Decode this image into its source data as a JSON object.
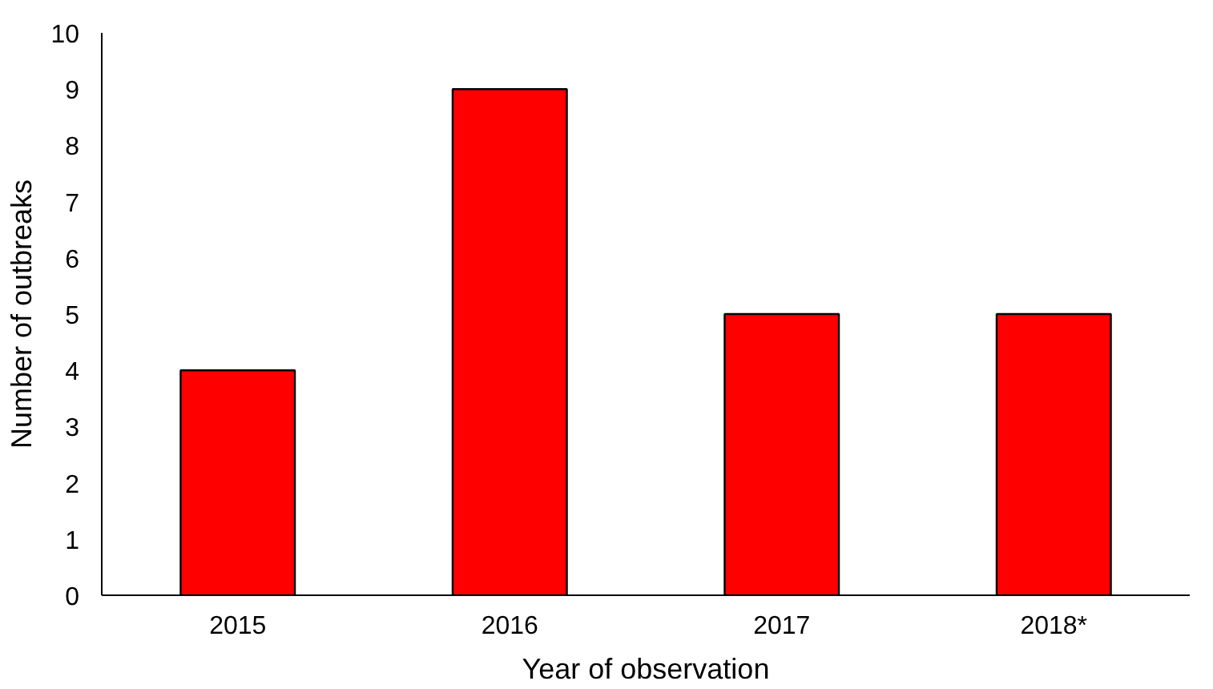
{
  "chart_data": {
    "type": "bar",
    "xlabel": "Year of observation",
    "ylabel": "Number of outbreaks",
    "categories": [
      "2015",
      "2016",
      "2017",
      "2018*"
    ],
    "values": [
      4,
      9,
      5,
      5
    ],
    "color": "#ff0000",
    "ylim": [
      0,
      10
    ],
    "yticks": [
      0,
      1,
      2,
      3,
      4,
      5,
      6,
      7,
      8,
      9,
      10
    ],
    "grid": false
  }
}
